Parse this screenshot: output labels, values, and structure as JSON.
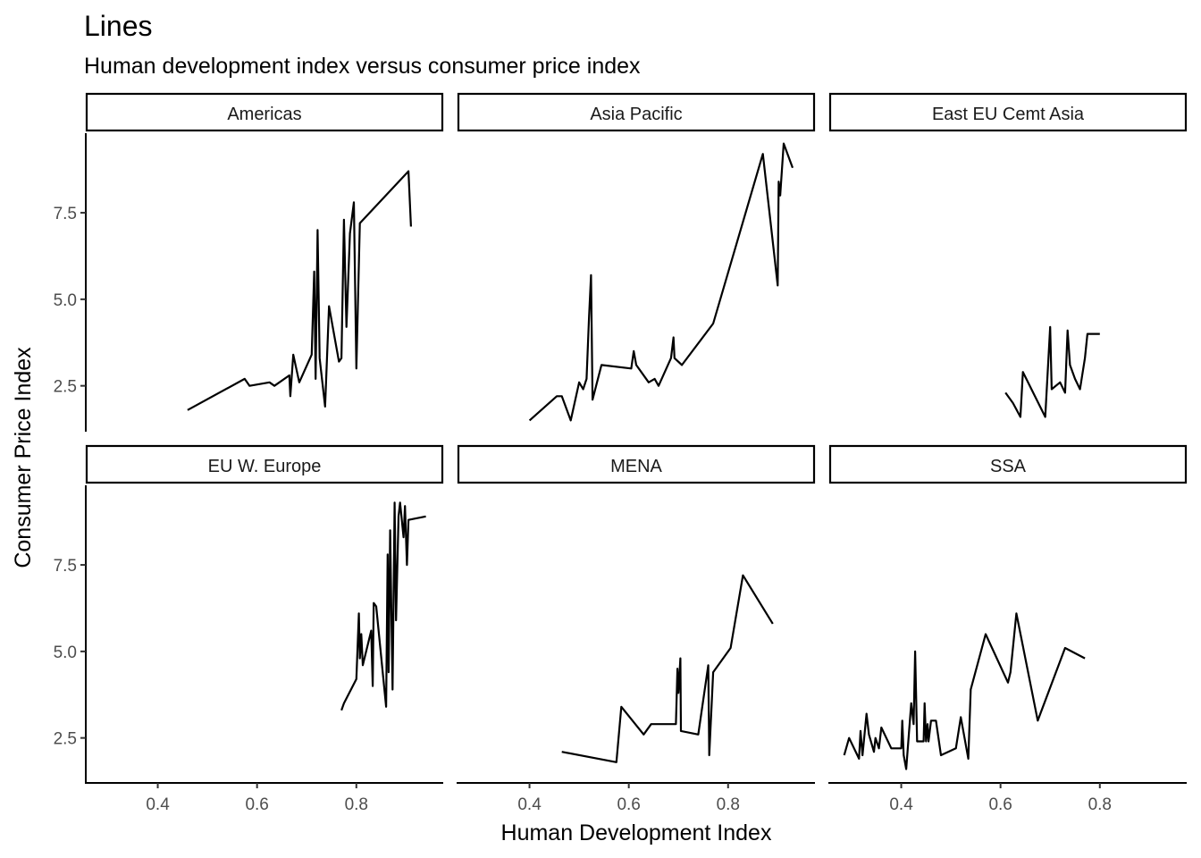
{
  "chart_data": {
    "type": "line",
    "title": "Lines",
    "subtitle": "Human development index versus consumer price index",
    "xlabel": "Human Development Index",
    "ylabel": "Consumer Price Index",
    "xlim": [
      0.255,
      0.975
    ],
    "ylim": [
      1.2,
      9.8
    ],
    "xticks": [
      0.4,
      0.6,
      0.8
    ],
    "xtick_labels": [
      "0.4",
      "0.6",
      "0.8"
    ],
    "yticks": [
      2.5,
      5.0,
      7.5
    ],
    "ytick_labels": [
      "2.5",
      "5.0",
      "7.5"
    ],
    "grid": false,
    "legend": "none",
    "facets": [
      {
        "name": "Americas",
        "points": [
          [
            0.46,
            1.8
          ],
          [
            0.575,
            2.7
          ],
          [
            0.585,
            2.5
          ],
          [
            0.625,
            2.6
          ],
          [
            0.635,
            2.5
          ],
          [
            0.665,
            2.8
          ],
          [
            0.667,
            2.2
          ],
          [
            0.673,
            3.4
          ],
          [
            0.685,
            2.6
          ],
          [
            0.71,
            3.4
          ],
          [
            0.715,
            5.8
          ],
          [
            0.718,
            2.7
          ],
          [
            0.722,
            7.0
          ],
          [
            0.726,
            3.3
          ],
          [
            0.737,
            1.9
          ],
          [
            0.745,
            4.8
          ],
          [
            0.765,
            3.2
          ],
          [
            0.77,
            3.3
          ],
          [
            0.775,
            7.3
          ],
          [
            0.78,
            4.2
          ],
          [
            0.787,
            6.9
          ],
          [
            0.795,
            7.8
          ],
          [
            0.8,
            3.0
          ],
          [
            0.807,
            7.2
          ],
          [
            0.905,
            8.7
          ],
          [
            0.91,
            7.1
          ]
        ]
      },
      {
        "name": "Asia Pacific",
        "points": [
          [
            0.4,
            1.5
          ],
          [
            0.455,
            2.2
          ],
          [
            0.465,
            2.2
          ],
          [
            0.483,
            1.5
          ],
          [
            0.5,
            2.6
          ],
          [
            0.508,
            2.4
          ],
          [
            0.515,
            2.7
          ],
          [
            0.52,
            4.5
          ],
          [
            0.524,
            5.7
          ],
          [
            0.527,
            2.1
          ],
          [
            0.545,
            3.1
          ],
          [
            0.605,
            3.0
          ],
          [
            0.61,
            3.5
          ],
          [
            0.615,
            3.1
          ],
          [
            0.64,
            2.6
          ],
          [
            0.652,
            2.7
          ],
          [
            0.66,
            2.5
          ],
          [
            0.685,
            3.3
          ],
          [
            0.69,
            3.9
          ],
          [
            0.692,
            3.3
          ],
          [
            0.707,
            3.1
          ],
          [
            0.77,
            4.3
          ],
          [
            0.87,
            9.2
          ],
          [
            0.9,
            5.4
          ],
          [
            0.902,
            8.4
          ],
          [
            0.905,
            8.0
          ],
          [
            0.912,
            9.5
          ],
          [
            0.93,
            8.8
          ]
        ]
      },
      {
        "name": "East EU Cemt Asia",
        "points": [
          [
            0.61,
            2.3
          ],
          [
            0.625,
            2.0
          ],
          [
            0.64,
            1.6
          ],
          [
            0.645,
            2.9
          ],
          [
            0.69,
            1.6
          ],
          [
            0.7,
            4.2
          ],
          [
            0.703,
            2.4
          ],
          [
            0.72,
            2.6
          ],
          [
            0.73,
            2.3
          ],
          [
            0.735,
            4.1
          ],
          [
            0.74,
            3.1
          ],
          [
            0.75,
            2.7
          ],
          [
            0.76,
            2.4
          ],
          [
            0.77,
            3.3
          ],
          [
            0.775,
            4.0
          ],
          [
            0.8,
            4.0
          ]
        ]
      },
      {
        "name": "EU W. Europe",
        "points": [
          [
            0.77,
            3.3
          ],
          [
            0.775,
            3.5
          ],
          [
            0.8,
            4.2
          ],
          [
            0.805,
            6.1
          ],
          [
            0.807,
            4.8
          ],
          [
            0.81,
            5.5
          ],
          [
            0.813,
            4.6
          ],
          [
            0.83,
            5.6
          ],
          [
            0.833,
            4.0
          ],
          [
            0.835,
            6.4
          ],
          [
            0.84,
            6.3
          ],
          [
            0.86,
            3.4
          ],
          [
            0.863,
            7.8
          ],
          [
            0.865,
            4.4
          ],
          [
            0.868,
            8.5
          ],
          [
            0.873,
            3.9
          ],
          [
            0.877,
            9.3
          ],
          [
            0.88,
            5.9
          ],
          [
            0.885,
            8.9
          ],
          [
            0.888,
            9.3
          ],
          [
            0.895,
            8.3
          ],
          [
            0.898,
            9.2
          ],
          [
            0.902,
            7.5
          ],
          [
            0.905,
            8.8
          ],
          [
            0.94,
            8.9
          ]
        ]
      },
      {
        "name": "MENA",
        "points": [
          [
            0.465,
            2.1
          ],
          [
            0.575,
            1.8
          ],
          [
            0.585,
            3.4
          ],
          [
            0.63,
            2.6
          ],
          [
            0.645,
            2.9
          ],
          [
            0.695,
            2.9
          ],
          [
            0.698,
            4.5
          ],
          [
            0.7,
            3.8
          ],
          [
            0.704,
            4.8
          ],
          [
            0.705,
            2.7
          ],
          [
            0.74,
            2.6
          ],
          [
            0.76,
            4.6
          ],
          [
            0.762,
            2.0
          ],
          [
            0.77,
            4.4
          ],
          [
            0.805,
            5.1
          ],
          [
            0.83,
            7.2
          ],
          [
            0.89,
            5.8
          ]
        ]
      },
      {
        "name": "SSA",
        "points": [
          [
            0.285,
            2.0
          ],
          [
            0.295,
            2.5
          ],
          [
            0.315,
            1.9
          ],
          [
            0.318,
            2.7
          ],
          [
            0.322,
            2.0
          ],
          [
            0.33,
            3.2
          ],
          [
            0.335,
            2.6
          ],
          [
            0.345,
            2.1
          ],
          [
            0.348,
            2.5
          ],
          [
            0.355,
            2.2
          ],
          [
            0.36,
            2.8
          ],
          [
            0.38,
            2.2
          ],
          [
            0.4,
            2.2
          ],
          [
            0.402,
            3.0
          ],
          [
            0.405,
            2.0
          ],
          [
            0.41,
            1.6
          ],
          [
            0.42,
            3.5
          ],
          [
            0.425,
            2.9
          ],
          [
            0.428,
            5.0
          ],
          [
            0.432,
            2.4
          ],
          [
            0.445,
            2.4
          ],
          [
            0.447,
            3.5
          ],
          [
            0.45,
            2.4
          ],
          [
            0.453,
            2.9
          ],
          [
            0.455,
            2.4
          ],
          [
            0.46,
            3.0
          ],
          [
            0.47,
            3.0
          ],
          [
            0.48,
            2.0
          ],
          [
            0.51,
            2.2
          ],
          [
            0.52,
            3.1
          ],
          [
            0.535,
            1.9
          ],
          [
            0.54,
            3.9
          ],
          [
            0.57,
            5.5
          ],
          [
            0.615,
            4.1
          ],
          [
            0.62,
            4.4
          ],
          [
            0.632,
            6.1
          ],
          [
            0.675,
            3.0
          ],
          [
            0.73,
            5.1
          ],
          [
            0.77,
            4.8
          ]
        ]
      }
    ]
  }
}
